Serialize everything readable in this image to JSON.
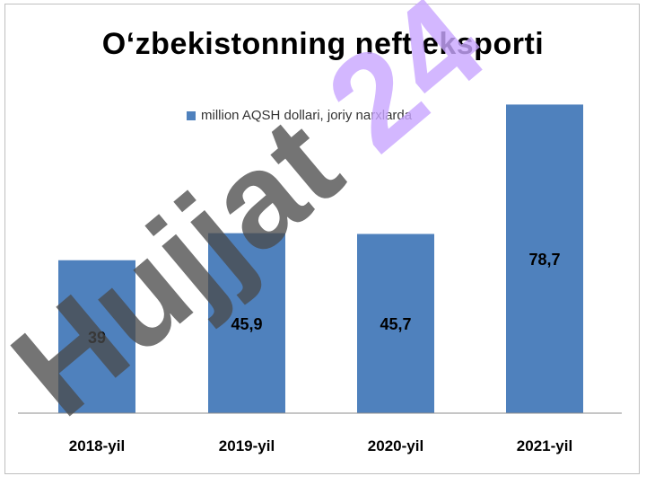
{
  "chart_data": {
    "type": "bar",
    "title": "O‘zbekistonning neft eksporti",
    "categories": [
      "2018-yil",
      "2019-yil",
      "2020-yil",
      "2021-yil"
    ],
    "series": [
      {
        "name": "million AQSH dollari, joriy narxlarda",
        "values": [
          39,
          45.9,
          45.7,
          78.7
        ]
      }
    ],
    "value_labels": [
      "39",
      "45,9",
      "45,7",
      "78,7"
    ],
    "ylim": [
      0,
      82
    ],
    "grid": false,
    "legend_position": "top",
    "bar_color": "#4f81bd"
  },
  "watermark": {
    "text": "Hujjat 24",
    "color": "#4a4a4a",
    "accent_color": "#c9a6ff"
  }
}
